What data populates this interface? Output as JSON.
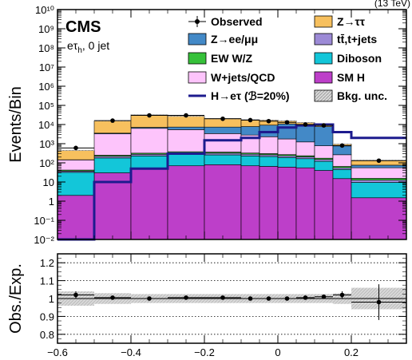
{
  "header": {
    "right_text": "(13 TeV)"
  },
  "labels": {
    "experiment": "CMS",
    "category": "eτ",
    "category_sub": "h",
    "category_suffix": ", 0 jet"
  },
  "chart_data": [
    {
      "type": "bar",
      "stacked": true,
      "ylabel": "Events/Bin",
      "yscale": "log",
      "ylim": [
        0.01,
        10000000000.0
      ],
      "xlim": [
        -0.6,
        0.35
      ],
      "bin_edges": [
        -0.6,
        -0.5,
        -0.4,
        -0.3,
        -0.2,
        -0.1,
        -0.05,
        0,
        0.05,
        0.1,
        0.15,
        0.2,
        0.35
      ],
      "ytick_labels": [
        "10⁻²",
        "10⁻¹",
        "1",
        "10",
        "10²",
        "10³",
        "10⁴",
        "10⁵",
        "10⁶",
        "10⁷",
        "10⁸",
        "10⁹",
        "10¹⁰"
      ],
      "ytick_values": [
        0.01,
        0.1,
        1,
        10,
        100,
        1000,
        10000,
        100000,
        1000000,
        10000000,
        100000000,
        1000000000,
        10000000000
      ],
      "legend_position": "top",
      "series": [
        {
          "name": "SM H",
          "color": "#bd3fc9",
          "values": [
            2,
            30,
            50,
            70,
            80,
            70,
            65,
            60,
            55,
            40,
            15,
            1.5
          ]
        },
        {
          "name": "Diboson",
          "color": "#13c6d9",
          "values": [
            30,
            150,
            180,
            200,
            180,
            160,
            150,
            130,
            110,
            80,
            30,
            8
          ]
        },
        {
          "name": "tt̄,t+jets",
          "color": "#9c8ad6",
          "values": [
            5,
            40,
            50,
            60,
            60,
            55,
            50,
            45,
            40,
            30,
            10,
            3
          ]
        },
        {
          "name": "EW W/Z",
          "color": "#36c13a",
          "values": [
            5,
            30,
            40,
            50,
            45,
            40,
            38,
            35,
            30,
            25,
            10,
            3
          ]
        },
        {
          "name": "W+jets/QCD",
          "color": "#fdc4fb",
          "values": [
            100,
            3000,
            6000,
            5000,
            3000,
            2500,
            2000,
            1500,
            1000,
            600,
            200,
            40
          ]
        },
        {
          "name": "Z→ee/μμ",
          "color": "#4389c7",
          "values": [
            3,
            300,
            800,
            2000,
            4000,
            5000,
            7000,
            9000,
            9000,
            7000,
            500,
            20
          ]
        },
        {
          "name": "Z→ττ",
          "color": "#f7c05e",
          "values": [
            300,
            12000,
            25000,
            20000,
            13000,
            10000,
            8000,
            5000,
            2500,
            1000,
            200,
            60
          ]
        }
      ],
      "observed": {
        "name": "Observed",
        "values": [
          600,
          16000,
          30000,
          30000,
          20000,
          17000,
          15000,
          13000,
          10000,
          9000,
          800,
          130
        ]
      },
      "signal": {
        "name": "H→eτ (ℬ=20%)",
        "color": "#1d1b8e",
        "values": [
          0.01,
          10,
          50,
          300,
          1500,
          2000,
          4000,
          7000,
          9000,
          10000,
          4000,
          2000
        ]
      },
      "uncertainty_name": "Bkg. unc.",
      "legend_order": [
        "Observed",
        "Z→ττ",
        "Z→ee/μμ",
        "tt̄,t+jets",
        "EW W/Z",
        "Diboson",
        "W+jets/QCD",
        "SM H",
        "H→eτ (ℬ=20%)",
        "Bkg. unc."
      ]
    },
    {
      "type": "scatter",
      "ylabel": "Obs./Exp.",
      "xlim": [
        -0.6,
        0.35
      ],
      "ylim": [
        0.75,
        1.25
      ],
      "xticks": [
        -0.6,
        -0.4,
        -0.2,
        0,
        0.2
      ],
      "xtick_labels": [
        "−0.6",
        "−0.4",
        "−0.2",
        "0",
        "0.2"
      ],
      "yticks": [
        0.8,
        0.9,
        1.0,
        1.1,
        1.2
      ],
      "ytick_labels": [
        "0.8",
        "0.9",
        "1",
        "1.1",
        "1.2"
      ],
      "bin_edges": [
        -0.6,
        -0.5,
        -0.4,
        -0.3,
        -0.2,
        -0.1,
        -0.05,
        0,
        0.05,
        0.1,
        0.15,
        0.2,
        0.35
      ],
      "ratio": [
        1.02,
        1.005,
        1.0,
        1.005,
        1.005,
        1.0,
        1.0,
        1.0,
        1.005,
        1.01,
        1.02,
        0.98
      ],
      "ratio_err": [
        0.02,
        0.008,
        0.006,
        0.006,
        0.007,
        0.008,
        0.008,
        0.009,
        0.01,
        0.012,
        0.02,
        0.1
      ],
      "band_err": [
        0.04,
        0.03,
        0.025,
        0.025,
        0.025,
        0.025,
        0.025,
        0.025,
        0.025,
        0.025,
        0.03,
        0.06
      ],
      "grid": "dotted"
    }
  ]
}
